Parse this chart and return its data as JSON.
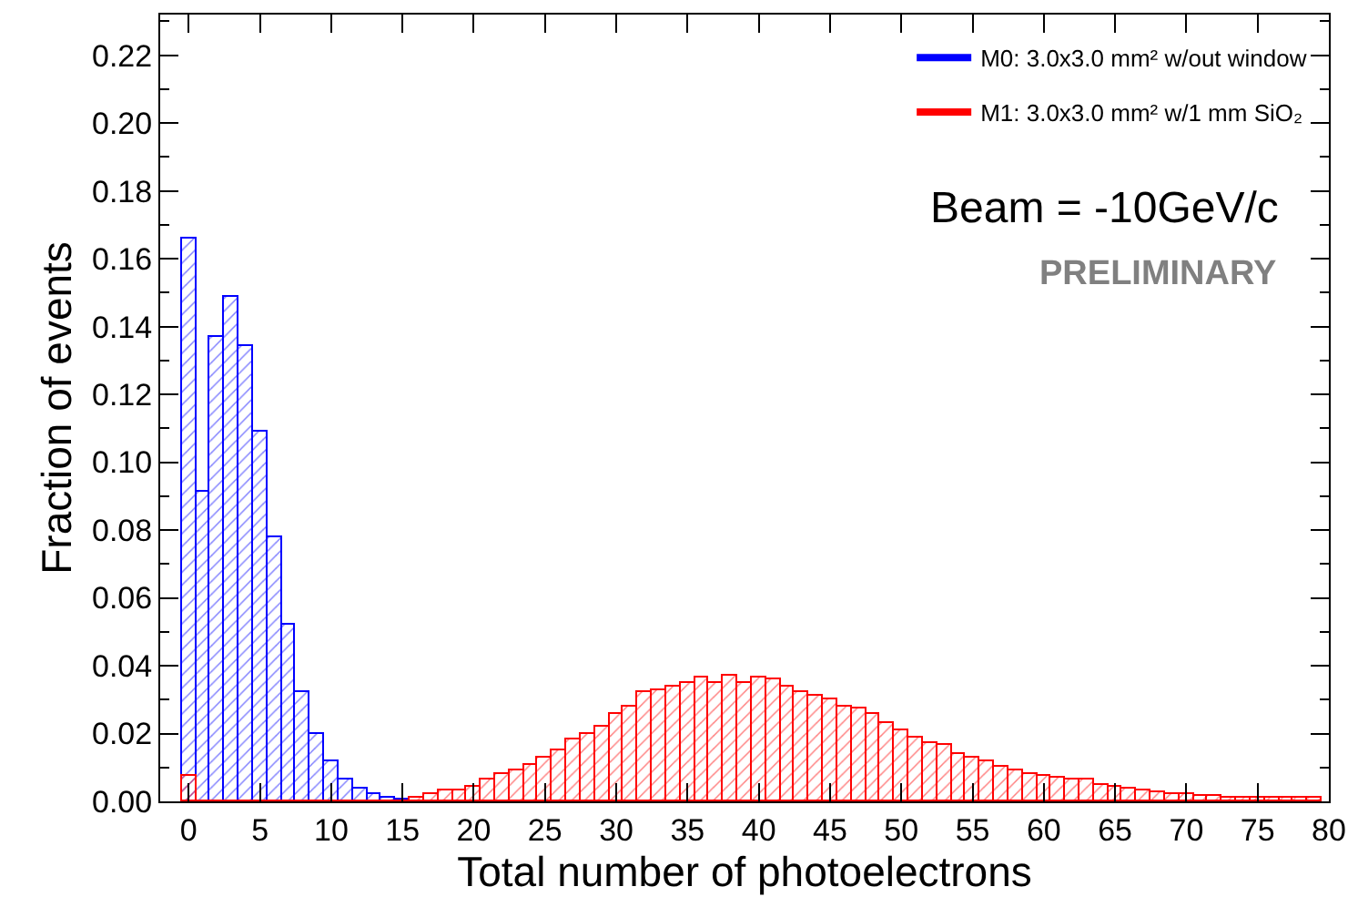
{
  "chart_data": {
    "type": "histogram",
    "xlabel": "Total number of photoelectrons",
    "ylabel": "Fraction of events",
    "bins": [
      -0.5,
      0.5,
      1.5,
      2.5,
      3.5,
      4.5,
      5.5,
      6.5,
      7.5,
      8.5,
      9.5,
      10.5,
      11.5,
      12.5,
      13.5,
      14.5,
      15.5,
      16.5,
      17.5,
      18.5,
      19.5,
      20.5,
      21.5,
      22.5,
      23.5,
      24.5,
      25.5,
      26.5,
      27.5,
      28.5,
      29.5,
      30.5,
      31.5,
      32.5,
      33.5,
      34.5,
      35.5,
      36.5,
      37.5,
      38.5,
      39.5,
      40.5,
      41.5,
      42.5,
      43.5,
      44.5,
      45.5,
      46.5,
      47.5,
      48.5,
      49.5,
      50.5,
      51.5,
      52.5,
      53.5,
      54.5,
      55.5,
      56.5,
      57.5,
      58.5,
      59.5,
      60.5,
      61.5,
      62.5,
      63.5,
      64.5,
      65.5,
      66.5,
      67.5,
      68.5,
      69.5,
      70.5,
      71.5,
      72.5,
      73.5,
      74.5,
      75.5,
      76.5,
      77.5,
      78.5,
      79.5
    ],
    "series": [
      {
        "name": "M0: 3.0x3.0 mm² w/out window",
        "color": "#0000ff",
        "values": [
          0.166,
          0.0915,
          0.137,
          0.149,
          0.1345,
          0.109,
          0.078,
          0.052,
          0.032,
          0.02,
          0.012,
          0.0067,
          0.004,
          0.002,
          0.0012,
          0.0007,
          0,
          0,
          0,
          0,
          0,
          0,
          0,
          0,
          0,
          0,
          0,
          0,
          0,
          0,
          0,
          0,
          0,
          0,
          0,
          0,
          0,
          0,
          0,
          0,
          0,
          0,
          0,
          0,
          0,
          0,
          0,
          0,
          0,
          0,
          0,
          0,
          0,
          0,
          0,
          0,
          0,
          0,
          0,
          0,
          0,
          0,
          0,
          0,
          0,
          0,
          0,
          0,
          0,
          0,
          0,
          0,
          0,
          0,
          0,
          0,
          0,
          0,
          0,
          0
        ]
      },
      {
        "name": "M1: 3.0x3.0 mm² w/1 mm SiO₂",
        "color": "#ff0000",
        "values": [
          0.0076,
          0,
          0,
          0,
          0,
          0,
          0,
          0,
          0,
          0,
          0,
          0,
          0,
          0,
          0,
          0,
          0.0009,
          0.002,
          0.003,
          0.003,
          0.0044,
          0.0066,
          0.008,
          0.0089,
          0.0106,
          0.013,
          0.015,
          0.018,
          0.02,
          0.022,
          0.026,
          0.028,
          0.032,
          0.033,
          0.034,
          0.035,
          0.0367,
          0.035,
          0.037,
          0.035,
          0.0363,
          0.036,
          0.034,
          0.032,
          0.031,
          0.03,
          0.028,
          0.0275,
          0.026,
          0.023,
          0.021,
          0.019,
          0.017,
          0.0165,
          0.014,
          0.0128,
          0.012,
          0.0103,
          0.0094,
          0.008,
          0.0076,
          0.0069,
          0.0062,
          0.0062,
          0.0048,
          0.0041,
          0.0039,
          0.003,
          0.0027,
          0.0023,
          0.002,
          0.0018,
          0.0016,
          0.0012,
          0.0009,
          0.0009,
          0.0009,
          0.0009,
          0.0009,
          0.0009
        ]
      }
    ],
    "xlim": [
      -2,
      80
    ],
    "xticks": [
      0,
      5,
      10,
      15,
      20,
      25,
      30,
      35,
      40,
      45,
      50,
      55,
      60,
      65,
      70,
      75,
      80
    ],
    "ylim": [
      0,
      0.232
    ],
    "yticks": [
      {
        "value": 0,
        "label": "0.00"
      },
      {
        "value": 0.02,
        "label": "0.02"
      },
      {
        "value": 0.04,
        "label": "0.04"
      },
      {
        "value": 0.06,
        "label": "0.06"
      },
      {
        "value": 0.08,
        "label": "0.08"
      },
      {
        "value": 0.1,
        "label": "0.10"
      },
      {
        "value": 0.12,
        "label": "0.12"
      },
      {
        "value": 0.14,
        "label": "0.14"
      },
      {
        "value": 0.16,
        "label": "0.16"
      },
      {
        "value": 0.18,
        "label": "0.18"
      },
      {
        "value": 0.2,
        "label": "0.20"
      },
      {
        "value": 0.22,
        "label": "0.22"
      }
    ],
    "legend": "top right",
    "annotations": [
      "Beam = -10GeV/c",
      "PRELIMINARY"
    ]
  }
}
